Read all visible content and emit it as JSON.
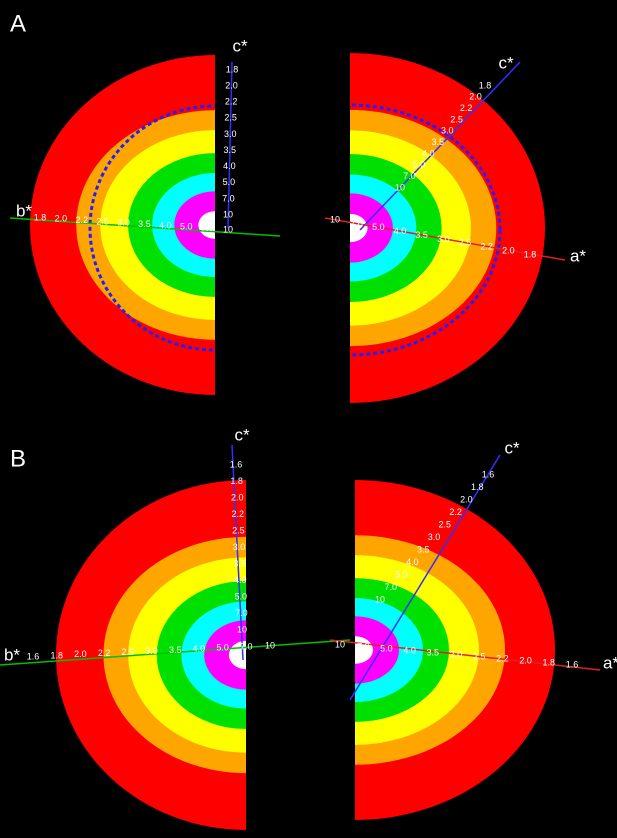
{
  "panels": [
    {
      "label": "A",
      "axes": [
        {
          "name": "c*",
          "ticks": [
            "1.8",
            "2.0",
            "2.2",
            "2.5",
            "3.0",
            "3.5",
            "4.0",
            "5.0",
            "7.0",
            "10"
          ]
        },
        {
          "name": "b*",
          "ticks": [
            "1.8",
            "2.0",
            "2.2",
            "2.5",
            "3.0",
            "3.5",
            "4.0",
            "5.0",
            "7.0",
            "10"
          ]
        },
        {
          "name": "c*",
          "ticks": [
            "1.8",
            "2.0",
            "2.2",
            "2.5",
            "3.0",
            "3.5",
            "4.0",
            "5.0",
            "7.0",
            "10"
          ]
        },
        {
          "name": "a*",
          "ticks": [
            "1.8",
            "2.0",
            "2.2",
            "2.5",
            "3.0",
            "3.5",
            "4.0",
            "5.0",
            "7.0",
            "10"
          ]
        }
      ]
    },
    {
      "label": "B",
      "axes": [
        {
          "name": "c*",
          "ticks": [
            "1.6",
            "1.8",
            "2.0",
            "2.2",
            "2.5",
            "3.0",
            "3.5",
            "4.0",
            "5.0",
            "7.0",
            "10"
          ]
        },
        {
          "name": "b*",
          "ticks": [
            "1.6",
            "1.8",
            "2.0",
            "2.2",
            "2.5",
            "3.0",
            "3.5",
            "4.0",
            "5.0",
            "7.0",
            "10"
          ]
        },
        {
          "name": "c*",
          "ticks": [
            "1.6",
            "1.8",
            "2.0",
            "2.2",
            "2.5",
            "3.0",
            "3.5",
            "4.0",
            "5.0",
            "7.0",
            "10"
          ]
        },
        {
          "name": "a*",
          "ticks": [
            "1.6",
            "1.8",
            "2.0",
            "2.2",
            "2.5",
            "3.0",
            "3.5",
            "4.0",
            "5.0",
            "7.0",
            "10"
          ]
        }
      ]
    }
  ]
}
